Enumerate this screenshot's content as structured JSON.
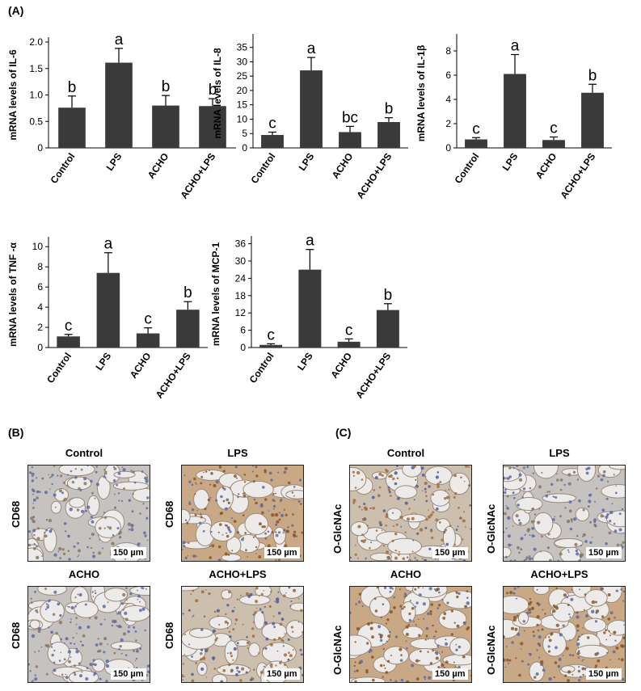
{
  "panel_labels": {
    "a": "(A)",
    "b": "(B)",
    "c": "(C)"
  },
  "colors": {
    "bar": "#3a3a3a",
    "tissue_blue": "#6f7fb0",
    "tissue_brown": "#b07840",
    "background_tissue": "#e6e0d6"
  },
  "chart_data": [
    {
      "type": "bar",
      "ylabel": "mRNA levels of IL-6",
      "categories": [
        "Control",
        "LPS",
        "ACHO",
        "ACHO+LPS"
      ],
      "values": [
        0.76,
        1.61,
        0.8,
        0.79
      ],
      "errors": [
        0.22,
        0.27,
        0.19,
        0.14
      ],
      "letters": [
        "b",
        "a",
        "b",
        "b"
      ],
      "ylim": [
        0,
        2.0
      ],
      "yticks": [
        "0",
        "0.5",
        "1.0",
        "1.5",
        "2.0"
      ]
    },
    {
      "type": "bar",
      "ylabel": "mRNA levels of IL-8",
      "categories": [
        "Control",
        "LPS",
        "ACHO",
        "ACHO+LPS"
      ],
      "values": [
        4.5,
        27,
        5.5,
        9
      ],
      "errors": [
        1,
        4.5,
        2,
        1.5
      ],
      "letters": [
        "c",
        "a",
        "bc",
        "b"
      ],
      "ylim": [
        0,
        38
      ],
      "yticks": [
        "0",
        "5",
        "10",
        "15",
        "20",
        "25",
        "30",
        "35"
      ]
    },
    {
      "type": "bar",
      "ylabel": "mRNA levels of IL-1β",
      "categories": [
        "Control",
        "LPS",
        "ACHO",
        "ACHO+LPS"
      ],
      "values": [
        0.7,
        6.1,
        0.65,
        4.55
      ],
      "errors": [
        0.15,
        1.6,
        0.25,
        0.7
      ],
      "letters": [
        "c",
        "a",
        "c",
        "b"
      ],
      "ylim": [
        0,
        9
      ],
      "yticks": [
        "0",
        "2",
        "4",
        "6",
        "8"
      ]
    },
    {
      "type": "bar",
      "ylabel": "mRNA levels of TNF -α",
      "categories": [
        "Control",
        "LPS",
        "ACHO",
        "ACHO+LPS"
      ],
      "values": [
        1.1,
        7.4,
        1.4,
        3.75
      ],
      "errors": [
        0.2,
        2.0,
        0.55,
        0.8
      ],
      "letters": [
        "c",
        "a",
        "c",
        "b"
      ],
      "ylim": [
        0,
        10.5
      ],
      "yticks": [
        "0",
        "2",
        "4",
        "6",
        "8",
        "10"
      ]
    },
    {
      "type": "bar",
      "ylabel": "mRNA levels of MCP-1",
      "categories": [
        "Control",
        "LPS",
        "ACHO",
        "ACHO+LPS"
      ],
      "values": [
        0.9,
        27,
        2,
        13
      ],
      "errors": [
        0.4,
        7,
        1,
        2.2
      ],
      "letters": [
        "c",
        "a",
        "c",
        "b"
      ],
      "ylim": [
        0,
        37
      ],
      "yticks": [
        "0",
        "6",
        "12",
        "18",
        "24",
        "30",
        "36"
      ]
    }
  ],
  "micrographs_b": [
    {
      "title": "Control",
      "stain": "CD68",
      "scale": "150 µm",
      "tone": "blue"
    },
    {
      "title": "LPS",
      "stain": "CD68",
      "scale": "150 µm",
      "tone": "brown"
    },
    {
      "title": "ACHO",
      "stain": "CD68",
      "scale": "150 µm",
      "tone": "blue"
    },
    {
      "title": "ACHO+LPS",
      "stain": "CD68",
      "scale": "150 µm",
      "tone": "mixed"
    }
  ],
  "micrographs_c": [
    {
      "title": "Control",
      "stain": "O-GlcNAc",
      "scale": "150 µm",
      "tone": "mixed"
    },
    {
      "title": "LPS",
      "stain": "O-GlcNAc",
      "scale": "150 µm",
      "tone": "blue"
    },
    {
      "title": "ACHO",
      "stain": "O-GlcNAc",
      "scale": "150 µm",
      "tone": "brown"
    },
    {
      "title": "ACHO+LPS",
      "stain": "O-GlcNAc",
      "scale": "150 µm",
      "tone": "brown"
    }
  ]
}
